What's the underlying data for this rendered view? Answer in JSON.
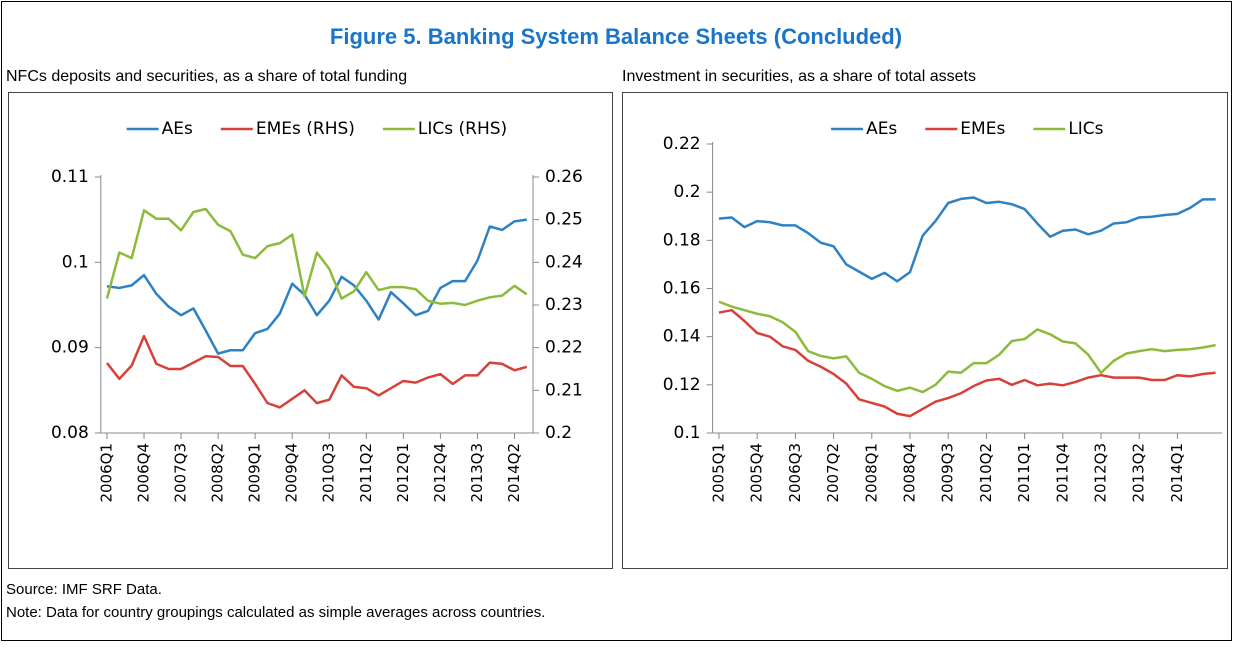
{
  "title": "Figure 5. Banking System Balance Sheets (Concluded)",
  "source": "Source: IMF SRF Data.",
  "note": "Note: Data for country groupings calculated as simple averages across countries.",
  "chart_data": [
    {
      "type": "line",
      "subtitle": "NFCs deposits and securities, as a share of total funding",
      "categories": [
        "2006Q1",
        null,
        null,
        "2006Q4",
        null,
        null,
        "2007Q3",
        null,
        null,
        "2008Q2",
        null,
        null,
        "2009Q1",
        null,
        null,
        "2009Q4",
        null,
        null,
        "2010Q3",
        null,
        null,
        "2011Q2",
        null,
        null,
        "2012Q1",
        null,
        null,
        "2012Q4",
        null,
        null,
        "2013Q3",
        null,
        null,
        "2014Q2",
        null
      ],
      "ylim": [
        0.08,
        0.11
      ],
      "yticks": [
        0.08,
        0.09,
        0.1,
        0.11
      ],
      "y2lim": [
        0.2,
        0.26
      ],
      "y2ticks": [
        0.2,
        0.21,
        0.22,
        0.23,
        0.24,
        0.25,
        0.26
      ],
      "series": [
        {
          "name": "AEs",
          "color": "#2e81c2",
          "values": [
            0.0972,
            0.097,
            0.0973,
            0.0985,
            0.0963,
            0.0948,
            0.0938,
            0.0946,
            0.092,
            0.0893,
            0.0897,
            0.0897,
            0.0917,
            0.0922,
            0.094,
            0.0975,
            0.0962,
            0.0938,
            0.0955,
            0.0983,
            0.0973,
            0.0955,
            0.0933,
            0.0965,
            0.0952,
            0.0938,
            0.0943,
            0.097,
            0.0978,
            0.0978,
            0.1002,
            0.1042,
            0.1038,
            0.1048,
            0.105
          ]
        },
        {
          "name": "EMEs (RHS)",
          "color": "#d8403a",
          "axis": "y2",
          "values": [
            0.2164,
            0.2127,
            0.2158,
            0.2227,
            0.2162,
            0.215,
            0.215,
            0.2165,
            0.218,
            0.2178,
            0.2157,
            0.2157,
            0.2115,
            0.207,
            0.206,
            0.208,
            0.21,
            0.207,
            0.2078,
            0.2135,
            0.2108,
            0.2105,
            0.2088,
            0.2105,
            0.2122,
            0.2118,
            0.213,
            0.2138,
            0.2115,
            0.2135,
            0.2135,
            0.2165,
            0.2162,
            0.2147,
            0.2155
          ]
        },
        {
          "name": "LICs (RHS)",
          "color": "#8cbb3c",
          "axis": "y2",
          "values": [
            0.2315,
            0.2423,
            0.241,
            0.2522,
            0.2502,
            0.2502,
            0.2475,
            0.2518,
            0.2525,
            0.2488,
            0.2473,
            0.2418,
            0.241,
            0.2438,
            0.2445,
            0.2465,
            0.232,
            0.2423,
            0.2385,
            0.2315,
            0.2332,
            0.2377,
            0.2335,
            0.2342,
            0.2342,
            0.2337,
            0.231,
            0.2303,
            0.2305,
            0.23,
            0.231,
            0.2318,
            0.2322,
            0.2345,
            0.2325
          ]
        }
      ]
    },
    {
      "type": "line",
      "subtitle": "Investment in securities, as a share of total assets",
      "categories": [
        "2005Q1",
        null,
        null,
        "2005Q4",
        null,
        null,
        "2006Q3",
        null,
        null,
        "2007Q2",
        null,
        null,
        "2008Q1",
        null,
        null,
        "2008Q4",
        null,
        null,
        "2009Q3",
        null,
        null,
        "2010Q2",
        null,
        null,
        "2011Q1",
        null,
        null,
        "2011Q4",
        null,
        null,
        "2012Q3",
        null,
        null,
        "2013Q2",
        null,
        null,
        "2014Q1",
        null,
        null,
        null
      ],
      "ylim": [
        0.1,
        0.22
      ],
      "yticks": [
        0.1,
        0.12,
        0.14,
        0.16,
        0.18,
        0.2,
        0.22
      ],
      "series": [
        {
          "name": "AEs",
          "color": "#2e81c2",
          "values": [
            0.189,
            0.1895,
            0.1855,
            0.188,
            0.1875,
            0.1862,
            0.1862,
            0.183,
            0.179,
            0.1775,
            0.17,
            0.167,
            0.164,
            0.1665,
            0.163,
            0.1668,
            0.182,
            0.188,
            0.1955,
            0.1972,
            0.1978,
            0.1955,
            0.196,
            0.195,
            0.193,
            0.187,
            0.1815,
            0.184,
            0.1845,
            0.1825,
            0.184,
            0.187,
            0.1875,
            0.1895,
            0.1898,
            0.1905,
            0.191,
            0.1935,
            0.197,
            0.197
          ]
        },
        {
          "name": "EMEs",
          "color": "#d8403a",
          "values": [
            0.15,
            0.151,
            0.1465,
            0.1415,
            0.14,
            0.136,
            0.1345,
            0.13,
            0.1275,
            0.1245,
            0.1205,
            0.114,
            0.1125,
            0.111,
            0.108,
            0.107,
            0.11,
            0.113,
            0.1145,
            0.1165,
            0.1195,
            0.1218,
            0.1225,
            0.12,
            0.122,
            0.1198,
            0.1205,
            0.1198,
            0.1212,
            0.123,
            0.124,
            0.123,
            0.123,
            0.123,
            0.122,
            0.122,
            0.124,
            0.1235,
            0.1245,
            0.125
          ]
        },
        {
          "name": "LICs",
          "color": "#8cbb3c",
          "values": [
            0.1545,
            0.1525,
            0.151,
            0.1495,
            0.1485,
            0.146,
            0.142,
            0.134,
            0.132,
            0.131,
            0.1318,
            0.125,
            0.1225,
            0.1195,
            0.1175,
            0.1188,
            0.117,
            0.12,
            0.1255,
            0.125,
            0.129,
            0.129,
            0.1325,
            0.1382,
            0.139,
            0.143,
            0.141,
            0.138,
            0.1372,
            0.1325,
            0.125,
            0.13,
            0.133,
            0.134,
            0.1348,
            0.134,
            0.1345,
            0.1348,
            0.1355,
            0.1365
          ]
        }
      ]
    }
  ]
}
